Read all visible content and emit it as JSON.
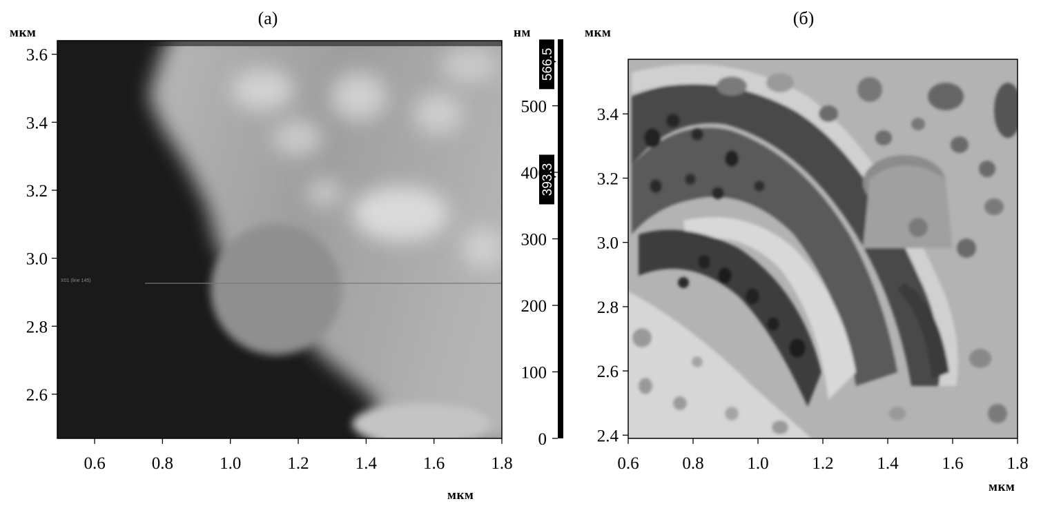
{
  "figure": {
    "panel_a": {
      "label": "(а)",
      "y_unit": "мкм",
      "x_unit": "мкм",
      "overlay_text": "X01 (line 145)"
    },
    "panel_b": {
      "label": "(б)",
      "y_unit": "мкм",
      "x_unit": "мкм"
    },
    "height_scale": {
      "unit": "нм",
      "range": [
        0,
        600
      ],
      "ticks": [
        "0",
        "100",
        "200",
        "300",
        "400",
        "500"
      ],
      "tick_values": [
        0,
        100,
        200,
        300,
        400,
        500
      ],
      "markers": [
        {
          "label": "566.5",
          "value": 566.5
        },
        {
          "label": "393.3",
          "value": 393.3
        }
      ]
    }
  },
  "chart_data": [
    {
      "type": "heatmap",
      "description_panel": "(а)",
      "x_ticks": [
        "0.6",
        "0.8",
        "1.0",
        "1.2",
        "1.4",
        "1.6",
        "1.8"
      ],
      "x_tick_values": [
        0.6,
        0.8,
        1.0,
        1.2,
        1.4,
        1.6,
        1.8
      ],
      "y_ticks": [
        "2.6",
        "2.8",
        "3.0",
        "3.2",
        "3.4",
        "3.6"
      ],
      "y_tick_values": [
        2.6,
        2.8,
        3.0,
        3.2,
        3.4,
        3.6
      ],
      "xlim": [
        0.49,
        1.8
      ],
      "ylim": [
        2.47,
        3.64
      ],
      "xlabel": "мкм",
      "ylabel": "мкм",
      "colorscale": "grayscale",
      "zlim": [
        0,
        600
      ],
      "zlabel": "нм"
    },
    {
      "type": "heatmap",
      "description_panel": "(б)",
      "x_ticks": [
        "0.6",
        "0.8",
        "1.0",
        "1.2",
        "1.4",
        "1.6",
        "1.8"
      ],
      "x_tick_values": [
        0.6,
        0.8,
        1.0,
        1.2,
        1.4,
        1.6,
        1.8
      ],
      "y_ticks": [
        "2.4",
        "2.6",
        "2.8",
        "3.0",
        "3.2",
        "3.4"
      ],
      "y_tick_values": [
        2.4,
        2.6,
        2.8,
        3.0,
        3.2,
        3.4
      ],
      "xlim": [
        0.6,
        1.8
      ],
      "ylim": [
        2.39,
        3.57
      ],
      "xlabel": "мкм",
      "ylabel": "мкм",
      "colorscale": "grayscale"
    }
  ]
}
